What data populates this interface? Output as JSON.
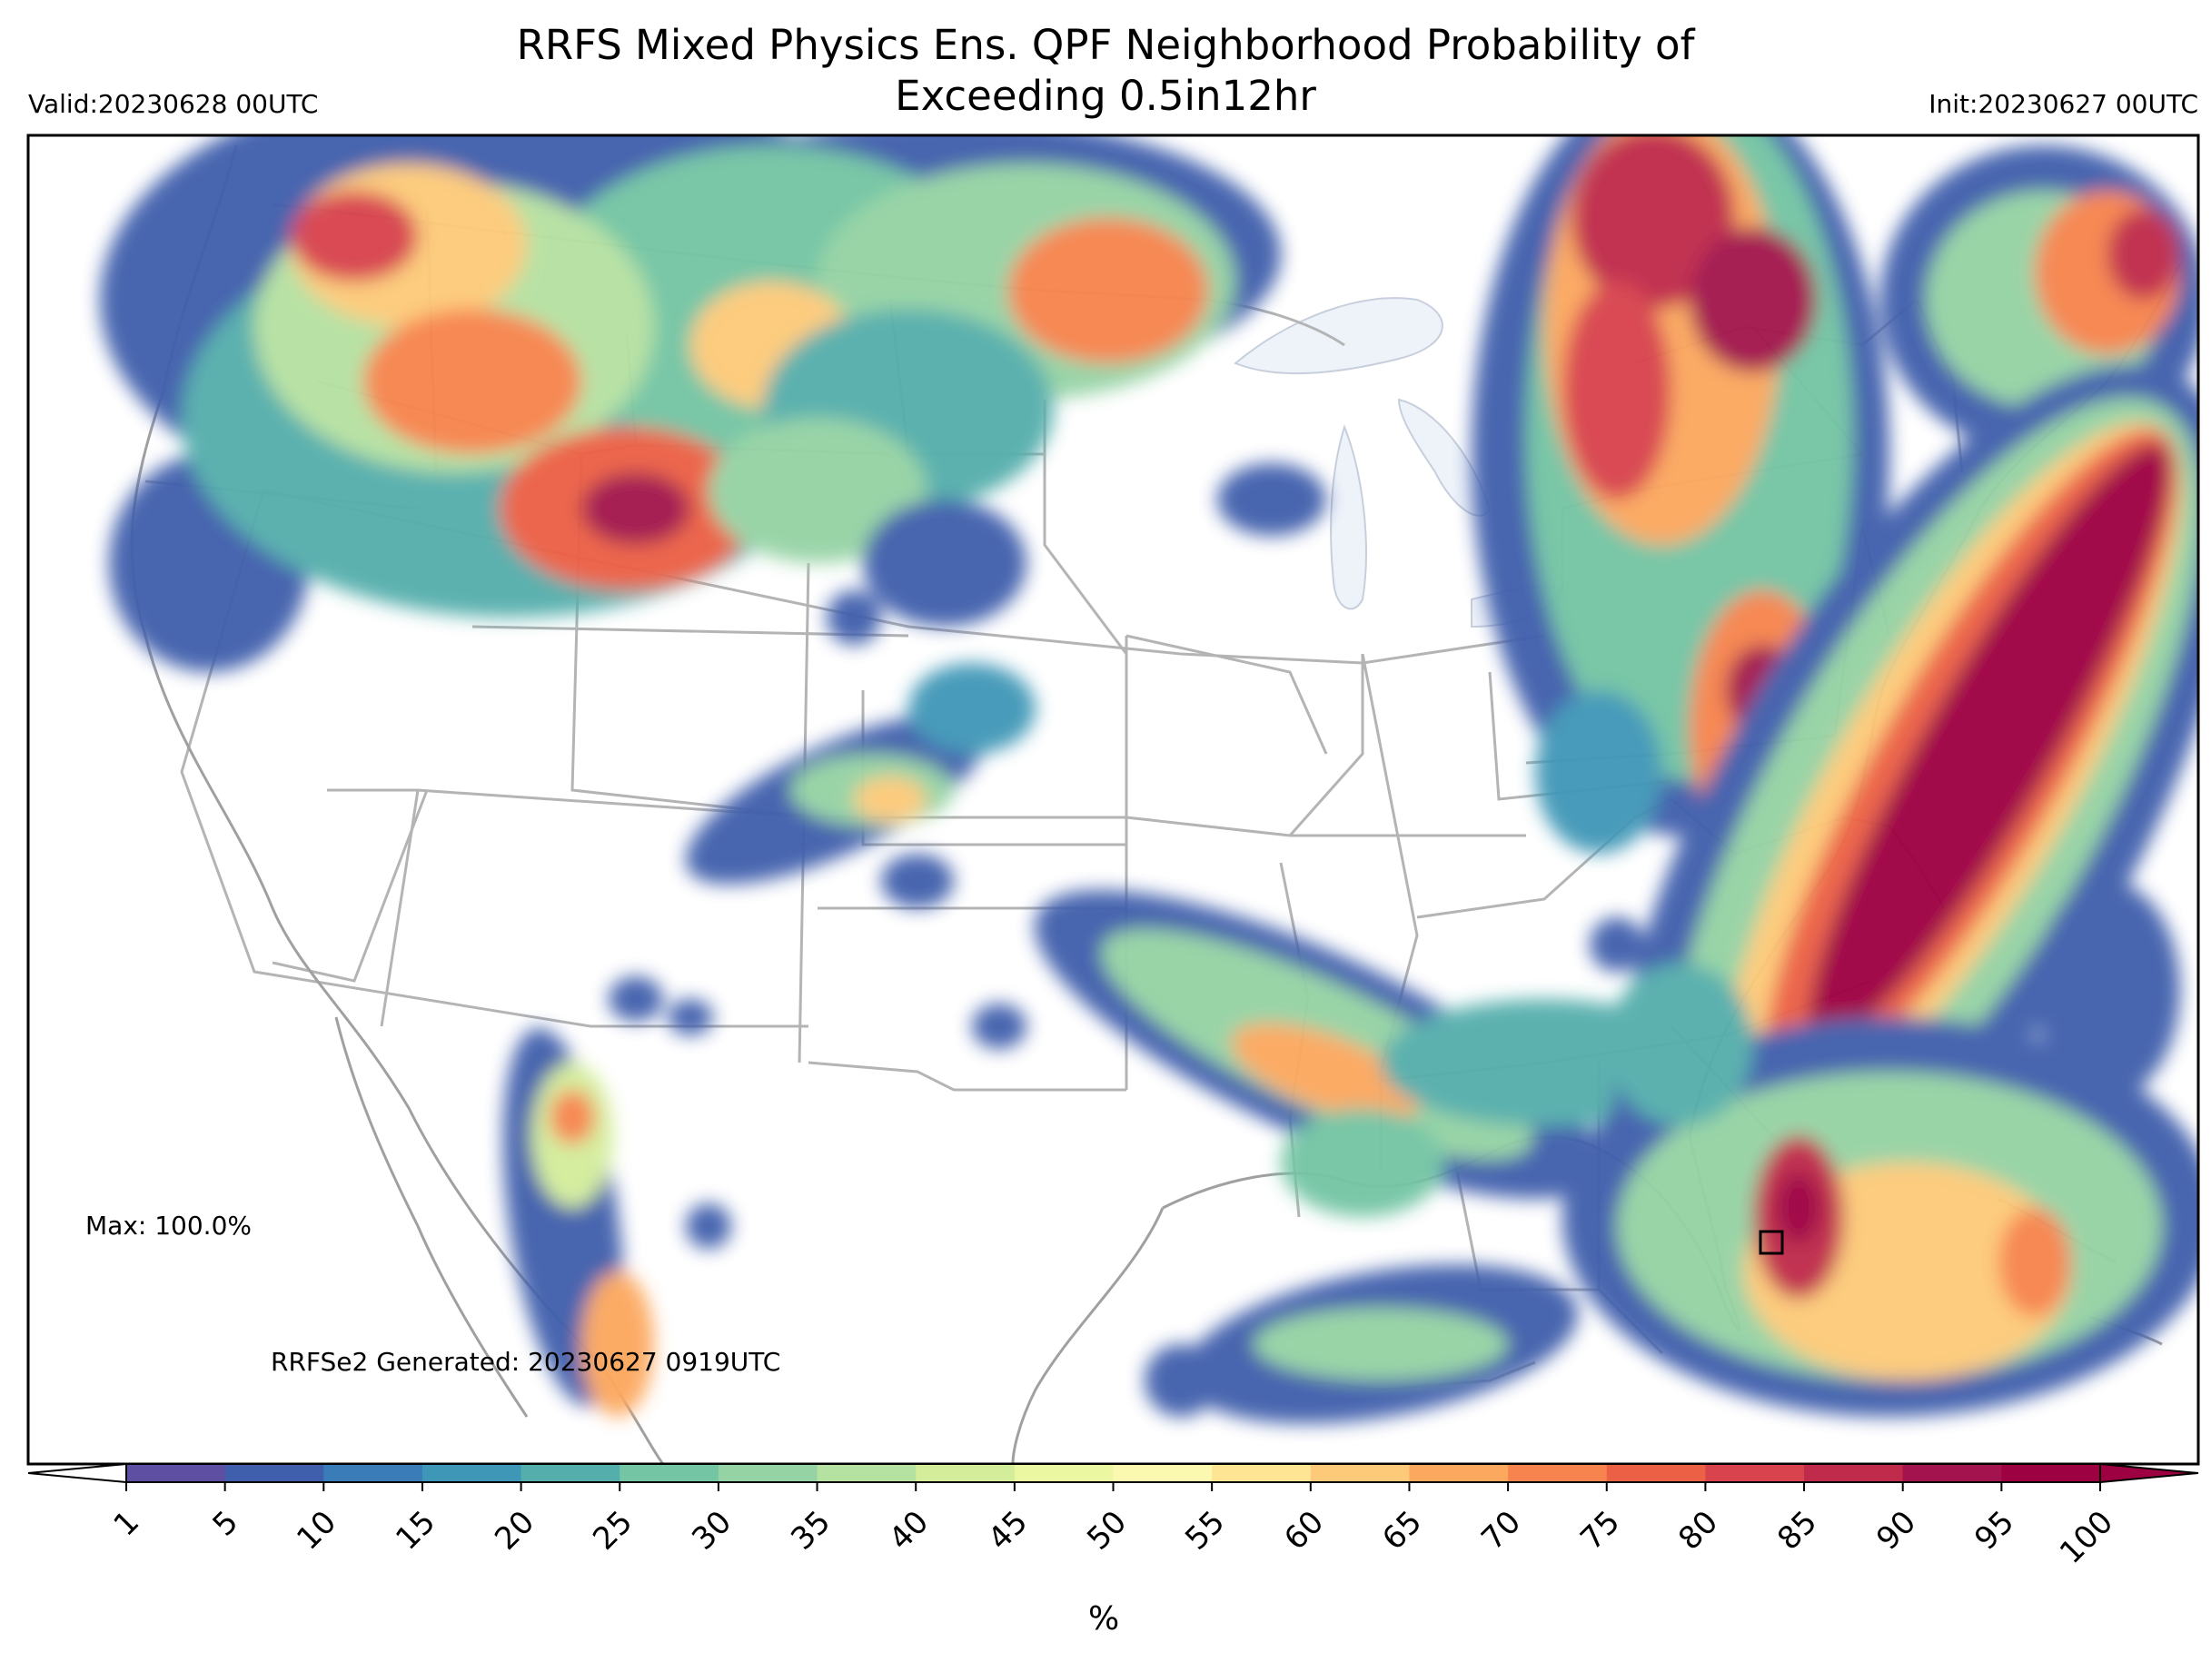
{
  "title_line1": "RRFS Mixed Physics Ens. QPF Neighborhood Probability of",
  "title_line2": "Exceeding 0.5in12hr",
  "valid_label": "Valid:20230628 00UTC",
  "init_label": "Init:20230627 00UTC",
  "max_label": "Max: 100.0%",
  "generated_label": "RRFSe2 Generated: 20230627 0919UTC",
  "colorbar": {
    "ticks": [
      "1",
      "5",
      "10",
      "15",
      "20",
      "25",
      "30",
      "35",
      "40",
      "45",
      "50",
      "55",
      "60",
      "65",
      "70",
      "75",
      "80",
      "85",
      "90",
      "95",
      "100"
    ],
    "unit": "%",
    "colors": [
      "#5e4fa2",
      "#3f5fac",
      "#3a7cb8",
      "#3f97b7",
      "#54aeac",
      "#73c5a4",
      "#95d3a4",
      "#b5e1a1",
      "#d3ed9b",
      "#ecf7a1",
      "#fbf8b0",
      "#fee593",
      "#fdca79",
      "#fca85e",
      "#f7844e",
      "#ec6145",
      "#d8434e",
      "#c02a4b",
      "#a3134d",
      "#9e0142"
    ],
    "under_color": "#ffffff",
    "over_color": "#9e0142"
  },
  "map": {
    "max_marker_color": "#000000",
    "lake_color": "#eef3fa",
    "border_color": "#b4b4b4",
    "coast_color": "#a0a0a0"
  }
}
